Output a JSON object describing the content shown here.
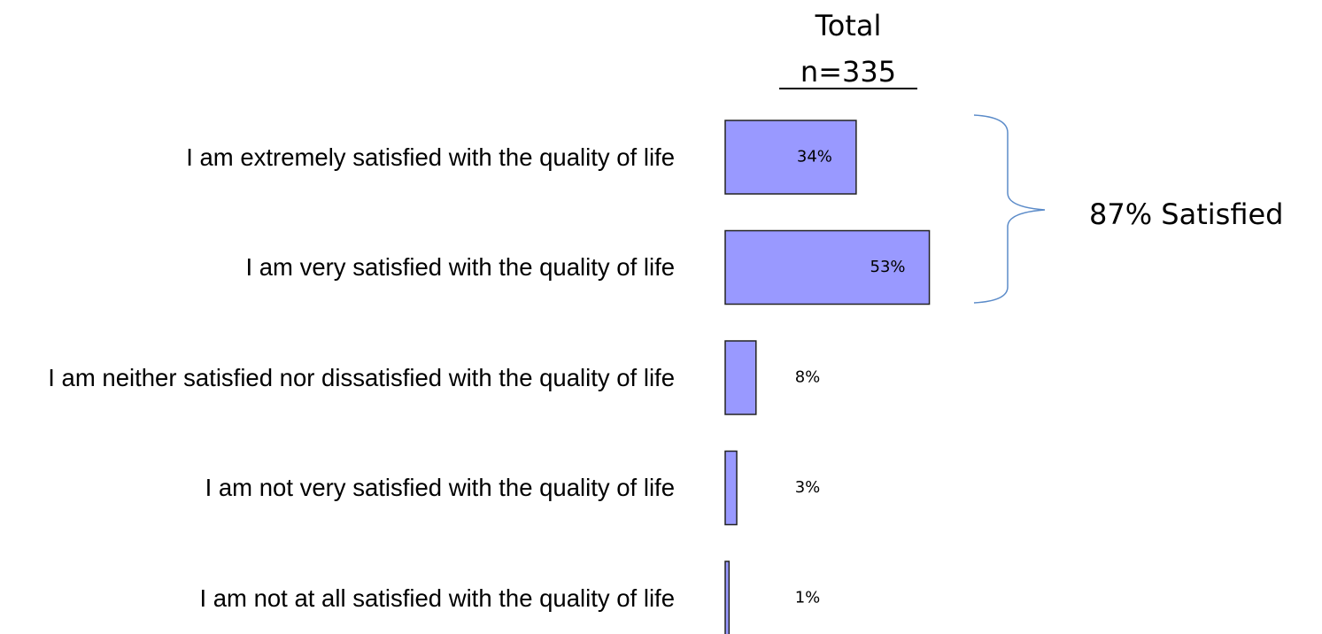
{
  "chart_data": {
    "type": "bar",
    "orientation": "horizontal",
    "title": "Total",
    "subtitle": "n=335",
    "categories": [
      "I am extremely satisfied with the quality of life",
      "I am very satisfied with the quality of life",
      "I am neither satisfied nor dissatisfied with the quality of life",
      "I am not very satisfied with the quality of life",
      "I am not at all satisfied with the quality of life"
    ],
    "values": [
      34,
      53,
      8,
      3,
      1
    ],
    "value_labels": [
      "34%",
      "53%",
      "8%",
      "3%",
      "1%"
    ],
    "color": "#9999ff",
    "annotation": "87% Satisfied"
  }
}
